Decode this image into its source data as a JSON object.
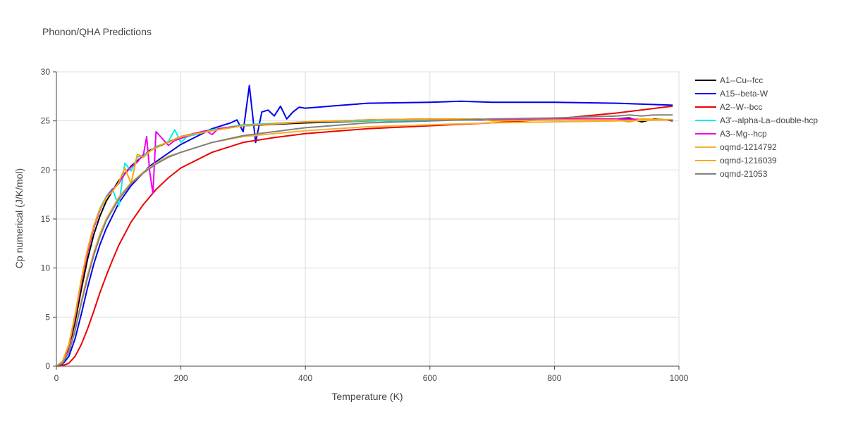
{
  "chart_data": {
    "type": "line",
    "title": "Phonon/QHA Predictions",
    "xlabel": "Temperature (K)",
    "ylabel": "Cp numerical (J/K/mol)",
    "xlim": [
      0,
      1000
    ],
    "ylim": [
      0,
      30
    ],
    "x_ticks": [
      0,
      200,
      400,
      600,
      800,
      1000
    ],
    "y_ticks": [
      0,
      5,
      10,
      15,
      20,
      25,
      30
    ],
    "x_tick_labels": [
      "0",
      "200",
      "400",
      "600",
      "800",
      "1000"
    ],
    "y_tick_labels": [
      "0",
      "5",
      "10",
      "15",
      "20",
      "25",
      "30"
    ],
    "grid": true,
    "legend_position": "right",
    "series": [
      {
        "name": "A1--Cu--fcc",
        "color": "#000000",
        "x": [
          0,
          10,
          20,
          30,
          40,
          50,
          60,
          70,
          80,
          100,
          120,
          150,
          200,
          250,
          300,
          400,
          500,
          600,
          700,
          800,
          900,
          920,
          940,
          960,
          980,
          990
        ],
        "y": [
          0,
          0.4,
          1.8,
          4.5,
          7.8,
          10.9,
          13.4,
          15.3,
          16.8,
          18.9,
          20.4,
          22.0,
          23.4,
          24.1,
          24.5,
          24.8,
          25.0,
          25.1,
          25.1,
          25.1,
          25.2,
          25.3,
          24.9,
          25.2,
          25.1,
          25.0
        ]
      },
      {
        "name": "A15--beta-W",
        "color": "#0000ee",
        "x": [
          0,
          10,
          20,
          30,
          40,
          50,
          60,
          70,
          80,
          100,
          120,
          150,
          200,
          250,
          280,
          290,
          300,
          310,
          320,
          330,
          340,
          350,
          360,
          370,
          380,
          390,
          400,
          420,
          440,
          460,
          500,
          600,
          650,
          700,
          800,
          900,
          990
        ],
        "y": [
          0,
          0.2,
          1.0,
          2.8,
          5.3,
          8.0,
          10.4,
          12.4,
          14.0,
          16.6,
          18.4,
          20.4,
          22.6,
          24.2,
          24.8,
          25.1,
          23.9,
          28.6,
          22.8,
          25.9,
          26.1,
          25.5,
          26.5,
          25.2,
          25.9,
          26.4,
          26.3,
          26.4,
          26.5,
          26.6,
          26.8,
          26.9,
          27.0,
          26.9,
          26.9,
          26.8,
          26.6
        ]
      },
      {
        "name": "A2--W--bcc",
        "color": "#ee0000",
        "x": [
          0,
          10,
          20,
          30,
          40,
          50,
          60,
          70,
          80,
          90,
          100,
          120,
          140,
          160,
          180,
          200,
          250,
          300,
          350,
          400,
          500,
          600,
          700,
          800,
          900,
          990
        ],
        "y": [
          0,
          0.05,
          0.3,
          1.0,
          2.2,
          3.8,
          5.6,
          7.5,
          9.2,
          10.8,
          12.3,
          14.7,
          16.5,
          18.0,
          19.2,
          20.2,
          21.8,
          22.8,
          23.3,
          23.7,
          24.2,
          24.5,
          24.8,
          25.2,
          25.8,
          26.5
        ]
      },
      {
        "name": "A3'--alpha-La--double-hcp",
        "color": "#00eeee",
        "x": [
          0,
          10,
          20,
          30,
          40,
          50,
          60,
          70,
          80,
          90,
          100,
          110,
          120,
          130,
          140,
          150,
          160,
          170,
          180,
          190,
          200,
          210,
          230,
          250,
          300,
          400,
          500,
          600,
          700,
          800,
          850,
          880,
          900,
          990
        ],
        "y": [
          0,
          0.5,
          2.2,
          5.2,
          8.8,
          11.9,
          14.3,
          16.1,
          17.3,
          18.1,
          16.3,
          20.7,
          19.9,
          21.3,
          21.5,
          21.9,
          22.4,
          22.6,
          22.9,
          24.1,
          22.8,
          23.4,
          23.7,
          24.1,
          24.6,
          24.9,
          25.0,
          25.1,
          25.1,
          25.1,
          25.2,
          25.1,
          25.1,
          25.1
        ]
      },
      {
        "name": "A3--Mg--hcp",
        "color": "#ee00ee",
        "x": [
          0,
          10,
          20,
          30,
          40,
          50,
          60,
          70,
          80,
          90,
          100,
          110,
          120,
          130,
          140,
          145,
          150,
          155,
          160,
          170,
          180,
          190,
          200,
          220,
          240,
          250,
          260,
          300,
          400,
          500,
          600,
          700,
          800,
          900,
          990
        ],
        "y": [
          0,
          0.4,
          2.0,
          5.0,
          8.5,
          11.6,
          14.1,
          15.9,
          17.2,
          18.0,
          18.6,
          19.6,
          20.3,
          20.8,
          21.6,
          23.4,
          19.8,
          17.6,
          23.9,
          23.2,
          22.5,
          23.0,
          23.2,
          23.7,
          24.0,
          23.6,
          24.2,
          24.5,
          24.9,
          25.1,
          25.2,
          25.1,
          25.2,
          25.2,
          25.1
        ]
      },
      {
        "name": "oqmd-1214792",
        "color": "#f2b233",
        "x": [
          0,
          10,
          20,
          30,
          40,
          50,
          60,
          70,
          80,
          100,
          120,
          140,
          160,
          180,
          200,
          250,
          300,
          400,
          500,
          600,
          700,
          800,
          900,
          990
        ],
        "y": [
          0,
          0.3,
          1.5,
          3.8,
          6.6,
          9.3,
          11.6,
          13.5,
          15.0,
          17.2,
          18.7,
          19.8,
          20.7,
          21.4,
          21.8,
          22.8,
          23.4,
          24.0,
          24.4,
          24.6,
          24.8,
          24.9,
          25.0,
          25.1
        ]
      },
      {
        "name": "oqmd-1216039",
        "color": "#ffa500",
        "x": [
          0,
          10,
          20,
          30,
          40,
          50,
          60,
          70,
          80,
          90,
          100,
          110,
          120,
          130,
          140,
          150,
          160,
          170,
          180,
          190,
          200,
          250,
          300,
          400,
          500,
          600,
          650,
          680,
          700,
          800,
          900,
          920,
          940,
          990
        ],
        "y": [
          0,
          0.5,
          2.2,
          5.2,
          8.8,
          11.9,
          14.3,
          16.0,
          17.2,
          17.8,
          18.7,
          20.2,
          18.6,
          21.6,
          21.3,
          21.9,
          22.3,
          22.6,
          22.8,
          23.1,
          23.4,
          24.0,
          24.5,
          24.9,
          25.1,
          25.2,
          25.2,
          25.2,
          25.0,
          25.1,
          25.1,
          24.9,
          25.2,
          25.1
        ]
      },
      {
        "name": "oqmd-21053",
        "color": "#808080",
        "x": [
          0,
          10,
          20,
          30,
          40,
          50,
          60,
          70,
          80,
          100,
          120,
          140,
          160,
          180,
          200,
          250,
          300,
          400,
          500,
          600,
          700,
          800,
          850,
          900,
          920,
          940,
          960,
          990
        ],
        "y": [
          0,
          0.3,
          1.4,
          3.6,
          6.4,
          9.0,
          11.3,
          13.2,
          14.8,
          17.0,
          18.6,
          19.7,
          20.6,
          21.3,
          21.8,
          22.8,
          23.5,
          24.3,
          24.8,
          25.0,
          25.2,
          25.3,
          25.4,
          25.5,
          25.6,
          25.5,
          25.6,
          25.6
        ]
      }
    ]
  }
}
